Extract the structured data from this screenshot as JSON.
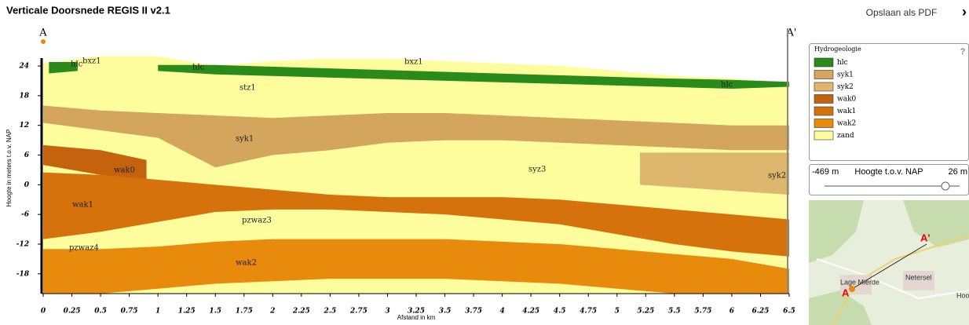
{
  "header": {
    "title": "Verticale Doorsnede REGIS II v2.1",
    "pdf": "Opslaan als PDF",
    "close": "›"
  },
  "chart_data": {
    "type": "cross-section",
    "ylabel": "Hoogte in meters t.o.v. NAP",
    "xlabel": "Afstand in km",
    "start_label": "A",
    "end_label": "A'",
    "xlim": [
      0,
      6.5
    ],
    "ylim": [
      -22,
      27.5
    ],
    "xticks": [
      0,
      0.25,
      0.5,
      0.75,
      1,
      1.25,
      1.5,
      1.75,
      2,
      2.25,
      2.5,
      2.75,
      3,
      3.25,
      3.5,
      3.75,
      4,
      4.25,
      4.5,
      4.75,
      5,
      5.25,
      5.5,
      5.75,
      6,
      6.25,
      6.5
    ],
    "yticks": [
      24,
      18,
      12,
      6,
      0,
      -6,
      -12,
      -18
    ],
    "legend_title": "Hydrogeologie",
    "series": [
      {
        "name": "hlc",
        "color": "#2a8a1a",
        "x": [
          0.05,
          0.3,
          0.5,
          1.0,
          1.5,
          5.4,
          6.0,
          6.5
        ],
        "top": [
          24.8,
          24.8,
          null,
          24.2,
          24.2,
          21.5,
          21.2,
          20.8
        ],
        "bottom": [
          22.5,
          23,
          null,
          23,
          22.3,
          19.8,
          19.4,
          19.8
        ]
      },
      {
        "name": "syk1",
        "color": "#d4a55c",
        "x": [
          0,
          0.5,
          1,
          1.5,
          2,
          2.5,
          3,
          3.5,
          4,
          4.5,
          5,
          5.5,
          6,
          6.5
        ],
        "top": [
          16,
          15,
          14.5,
          14,
          13.5,
          14,
          14.5,
          14.5,
          14,
          13.5,
          13,
          12.5,
          12,
          12
        ],
        "bottom": [
          12.5,
          11,
          9.5,
          3.5,
          6,
          7,
          8.5,
          9,
          9,
          8.5,
          8,
          7.5,
          7,
          7
        ]
      },
      {
        "name": "syk2",
        "color": "#deb66e",
        "x": [
          5.2,
          6.5
        ],
        "top": [
          6.5,
          6.5
        ],
        "bottom": [
          0,
          -2
        ]
      },
      {
        "name": "wak0",
        "color": "#c4620e",
        "x": [
          0,
          0.5,
          0.9
        ],
        "top": [
          8,
          7,
          5
        ],
        "bottom": [
          4,
          2,
          0
        ]
      },
      {
        "name": "wak1",
        "color": "#d6720c",
        "x": [
          0,
          0.5,
          1,
          1.5,
          2,
          2.5,
          3,
          3.5,
          4,
          4.5,
          5,
          5.5,
          6,
          6.5
        ],
        "top": [
          2.5,
          2,
          1,
          0,
          -1,
          -2,
          -2.5,
          -2.5,
          -2.5,
          -3,
          -4,
          -5,
          -6,
          -7
        ],
        "bottom": [
          -11,
          -9.5,
          -7.5,
          -5.5,
          -5,
          -5,
          -5.5,
          -6,
          -7,
          -8,
          -10,
          -12,
          -13.5,
          -14.5
        ]
      },
      {
        "name": "wak2",
        "color": "#e88a0c",
        "x": [
          0,
          0.5,
          1,
          1.5,
          2,
          2.5,
          3,
          3.5,
          4,
          4.5,
          5,
          5.5,
          6,
          6.5
        ],
        "top": [
          -13,
          -13,
          -12.5,
          -11.5,
          -11,
          -11,
          -11,
          -11,
          -11.5,
          -12,
          -13,
          -14,
          -15,
          -17
        ],
        "bottom": [
          -22,
          -22,
          -21,
          -20,
          -19.5,
          -19,
          -19,
          -19,
          -19.5,
          -20,
          -21,
          -22,
          -22,
          -22
        ]
      },
      {
        "name": "zand",
        "color": "#fdfd9e",
        "x": [
          0,
          0.5,
          1,
          1.5,
          2,
          2.5,
          3,
          3.5,
          4,
          4.5,
          5,
          5.5,
          6,
          6.5
        ],
        "top": [
          24.5,
          26,
          26,
          24,
          25,
          25.5,
          25.5,
          25,
          24.5,
          24,
          23,
          22,
          21.5,
          20.5
        ]
      }
    ],
    "annotations": [
      "bxz1",
      "hlc",
      "hlc",
      "bxz1",
      "hlc",
      "stz1",
      "syk1",
      "wak0",
      "syz3",
      "syk2",
      "wak1",
      "pzwaz3",
      "pzwaz4",
      "wak2"
    ]
  },
  "legend_help": "?",
  "slider": {
    "min": "-469 m",
    "title": "Hoogte t.o.v. NAP",
    "max": "26 m"
  },
  "map": {
    "labels": [
      "A'",
      "A",
      "Lage Mierde",
      "Netersel",
      "Hoo"
    ]
  }
}
